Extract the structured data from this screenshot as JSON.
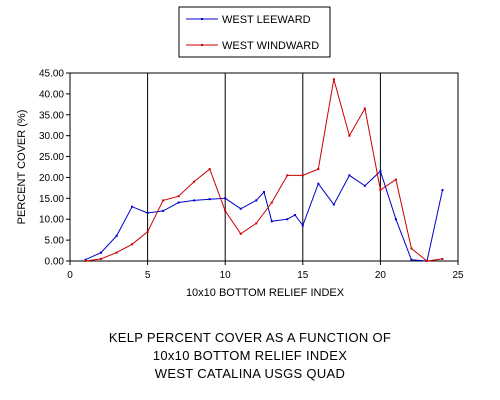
{
  "chart_data": {
    "type": "line",
    "xlabel": "10x10 BOTTOM RELIEF INDEX",
    "ylabel": "PERCENT COVER (%)",
    "xlim": [
      0,
      25
    ],
    "ylim": [
      0,
      45
    ],
    "x_ticks": [
      "0",
      "5",
      "10",
      "15",
      "20",
      "25"
    ],
    "y_ticks": [
      "0.00",
      "5.00",
      "10.00",
      "15.00",
      "20.00",
      "25.00",
      "30.00",
      "35.00",
      "40.00",
      "45.00"
    ],
    "grid": "vertical",
    "legend_position": "top-center",
    "series": [
      {
        "name": "WEST LEEWARD",
        "color": "#0000cc",
        "points": [
          [
            1,
            0.3
          ],
          [
            2,
            2.0
          ],
          [
            3,
            6.0
          ],
          [
            4,
            13.0
          ],
          [
            5,
            11.5
          ],
          [
            6,
            12.0
          ],
          [
            7,
            14.0
          ],
          [
            8,
            14.5
          ],
          [
            9,
            14.8
          ],
          [
            10,
            15.0
          ],
          [
            11,
            12.5
          ],
          [
            12,
            14.5
          ],
          [
            12.5,
            16.5
          ],
          [
            13,
            9.5
          ],
          [
            14,
            10.0
          ],
          [
            14.5,
            11.0
          ],
          [
            15,
            8.5
          ],
          [
            16,
            18.5
          ],
          [
            17,
            13.5
          ],
          [
            18,
            20.5
          ],
          [
            19,
            18.0
          ],
          [
            20,
            21.5
          ],
          [
            21,
            10.0
          ],
          [
            22,
            0.3
          ],
          [
            23,
            0.0
          ],
          [
            24,
            17.0
          ]
        ]
      },
      {
        "name": "WEST WINDWARD",
        "color": "#cc0000",
        "points": [
          [
            1,
            0.0
          ],
          [
            2,
            0.5
          ],
          [
            3,
            2.0
          ],
          [
            4,
            4.0
          ],
          [
            5,
            7.0
          ],
          [
            6,
            14.5
          ],
          [
            7,
            15.5
          ],
          [
            8,
            19.0
          ],
          [
            9,
            22.0
          ],
          [
            10,
            12.0
          ],
          [
            11,
            6.5
          ],
          [
            12,
            9.0
          ],
          [
            13,
            14.0
          ],
          [
            14,
            20.5
          ],
          [
            15,
            20.5
          ],
          [
            16,
            22.0
          ],
          [
            17,
            43.5
          ],
          [
            18,
            30.0
          ],
          [
            19,
            36.5
          ],
          [
            20,
            17.0
          ],
          [
            21,
            19.5
          ],
          [
            22,
            3.0
          ],
          [
            23,
            0.0
          ],
          [
            24,
            0.5
          ]
        ]
      }
    ]
  },
  "caption": {
    "line1": "KELP PERCENT COVER AS A FUNCTION OF",
    "line2": "10x10 BOTTOM RELIEF INDEX",
    "line3": "WEST CATALINA USGS QUAD"
  }
}
